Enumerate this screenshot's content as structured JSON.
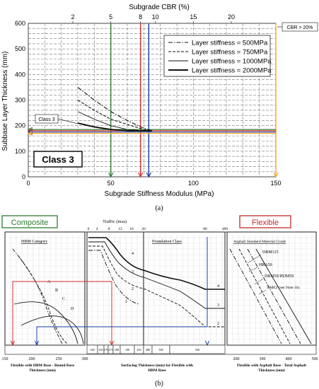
{
  "panel_a": {
    "caption": "(a)",
    "title_top": "Subgrade CBR (%)",
    "xlabel": "Subgrade Stiffness Modulus (MPa)",
    "ylabel": "Subbase Layer Thickness (mm)",
    "class_box": "Class 3",
    "class_small": "Class 3",
    "cbr_note": "CBR > 20%"
  },
  "panel_b": {
    "caption": "(b)",
    "composite_label": "Composite",
    "flexible_label": "Flexible",
    "traffic_label": "Traffic (msa)",
    "hbm_title": "HBM Category",
    "foundation_title": "Foundation Class",
    "asphalt_title": "Asphalt Standard Material Grade",
    "xlabel_left": "Flexible with HBM Base - Bound Base Thickness (mm)",
    "xlabel_mid": "Surfacing Thickness (mm) for Flexible with HBM Base",
    "xlabel_right": "Flexible with Asphalt Base - Total Asphalt Thickness (mm)",
    "hbm_curves": [
      "A",
      "B",
      "C",
      "D"
    ],
    "foundation_curves": [
      "4",
      "3",
      "2",
      "1"
    ],
    "foundation_right_labels": [
      "4",
      "3",
      "2"
    ],
    "asphalt_grades": [
      "DBM125",
      "HRA50",
      "DBM50/HDM50",
      "EME2 (see Note 1b)"
    ],
    "left_ticks": [
      "150",
      "200",
      "250",
      "300"
    ],
    "traffic_ticks": [
      "0",
      "4",
      "8",
      "12",
      "16",
      "20",
      "80",
      "400"
    ],
    "surfacing_cells": [
      "160",
      "165",
      "170",
      "175",
      "180",
      "190",
      "205",
      "280",
      "300",
      "330"
    ],
    "right_ticks": [
      "200",
      "300",
      "400",
      "500"
    ],
    "colors": {
      "composite": "#2e7d32",
      "flexible": "#c62828",
      "red": "#d32f2f",
      "blue": "#1a3fa8"
    }
  },
  "chart_data": [
    {
      "type": "line",
      "title": "Subgrade CBR (%)",
      "xlabel": "Subgrade Stiffness Modulus (MPa)",
      "ylabel": "Subbase Layer Thickness (mm)",
      "xlim": [
        0,
        150
      ],
      "ylim": [
        0,
        600
      ],
      "x_ticks": [
        0,
        50,
        100,
        150
      ],
      "y_ticks": [
        0,
        100,
        200,
        300,
        400,
        500,
        600
      ],
      "top_axis": {
        "label": "Subgrade CBR (%)",
        "ticks": [
          "2",
          "5",
          "8",
          "10",
          "15",
          "20"
        ],
        "modulus_positions": [
          27,
          50,
          68,
          77,
          100,
          123
        ]
      },
      "grid": true,
      "legend_position": "top-right",
      "series": [
        {
          "name": "Layer stiffness = 500MPa",
          "style": "dash-dot",
          "x": [
            30,
            40,
            50,
            60,
            70,
            75
          ],
          "y": [
            350,
            300,
            255,
            220,
            190,
            180
          ]
        },
        {
          "name": "Layer stiffness = 750MPa",
          "style": "dashed",
          "x": [
            30,
            40,
            50,
            60,
            70,
            75
          ],
          "y": [
            300,
            260,
            225,
            205,
            185,
            180
          ]
        },
        {
          "name": "Layer stiffness = 1000MPa",
          "style": "thin-solid",
          "x": [
            30,
            40,
            50,
            60,
            70,
            75
          ],
          "y": [
            255,
            225,
            200,
            185,
            180,
            180
          ]
        },
        {
          "name": "Layer stiffness = 2000MPa",
          "style": "thick-solid",
          "x": [
            30,
            40,
            50,
            60,
            70,
            75
          ],
          "y": [
            210,
            195,
            185,
            180,
            180,
            180
          ]
        }
      ],
      "markers": [
        {
          "orientation": "vertical",
          "x": 50,
          "color": "#2e7d32"
        },
        {
          "orientation": "vertical",
          "x": 68,
          "color": "#d32f2f"
        },
        {
          "orientation": "vertical",
          "x": 73,
          "color": "#1a3fa8"
        },
        {
          "orientation": "vertical",
          "x": 150,
          "color": "#f5a623"
        },
        {
          "orientation": "horizontal",
          "y": 185,
          "color": "#2e7d32"
        },
        {
          "orientation": "horizontal",
          "y": 180,
          "color": "#d32f2f"
        },
        {
          "orientation": "horizontal",
          "y": 175,
          "color": "#1a3fa8"
        },
        {
          "orientation": "horizontal",
          "y": 170,
          "color": "#f5a623"
        }
      ]
    },
    {
      "type": "line",
      "title": "Traffic (msa)",
      "xlabel": "Surfacing Thickness (mm) for Flexible with HBM Base",
      "x_ticks": [
        "0",
        "4",
        "8",
        "12",
        "16",
        "20",
        "80",
        "400"
      ],
      "grid": true,
      "series": [
        {
          "name": "4"
        },
        {
          "name": "3"
        },
        {
          "name": "2"
        },
        {
          "name": "1"
        }
      ]
    }
  ]
}
